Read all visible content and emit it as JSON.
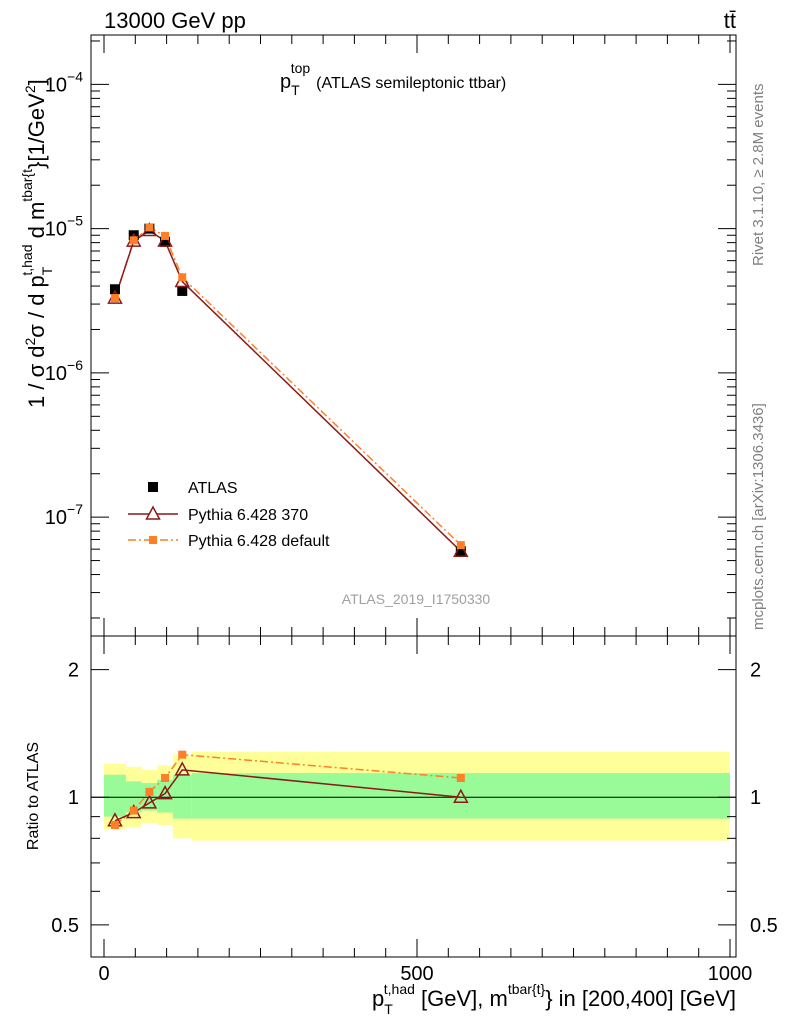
{
  "header": {
    "left_label": "13000 GeV pp",
    "right_label": "tt̄"
  },
  "side_labels": {
    "rivet": "Rivet 3.1.10, ≥ 2.8M events",
    "mcplots": "mcplots.cern.ch [arXiv:1306.3436]"
  },
  "colors": {
    "atlas": "#000000",
    "pythia370": "#8b1a1a",
    "pythia_default": "#ff7f27",
    "band_inner": "#98fb98",
    "band_outer": "#ffff99"
  },
  "chart_data": [
    {
      "type": "line",
      "panel": "main",
      "title_main": "p",
      "title_sub": "T",
      "title_sup": "top",
      "title_rest": "(ATLAS semileptonic ttbar)",
      "ylabel": "1 / σ d²σ / d p_T^{t,had} d m^{tbar{t}} [1/GeV²]",
      "yscale": "log",
      "ylim": [
        1.5e-08,
        0.00022
      ],
      "xlim": [
        -25,
        1010
      ],
      "y_ticklabels": [
        {
          "base": "10",
          "exp": "−7",
          "value": 1e-07
        },
        {
          "base": "10",
          "exp": "−6",
          "value": 1e-06
        },
        {
          "base": "10",
          "exp": "−5",
          "value": 1e-05
        },
        {
          "base": "10",
          "exp": "−4",
          "value": 0.0001
        }
      ],
      "watermark": "ATLAS_2019_I1750330",
      "legend_position": "bottom-left",
      "series": [
        {
          "name": "ATLAS",
          "style": "black squares",
          "x": [
            17.5,
            47.5,
            72.5,
            97.5,
            125,
            570
          ],
          "values": [
            3.8e-06,
            9e-06,
            1e-05,
            8.1e-06,
            3.7e-06,
            5.8e-08
          ]
        },
        {
          "name": "Pythia 6.428 370",
          "style": "solid line, open triangles",
          "x": [
            17.5,
            47.5,
            72.5,
            97.5,
            125,
            570
          ],
          "values": [
            3.3e-06,
            8.2e-06,
            9.7e-06,
            8.2e-06,
            4.3e-06,
            5.8e-08
          ]
        },
        {
          "name": "Pythia 6.428 default",
          "style": "dash-dot line, filled squares",
          "x": [
            17.5,
            47.5,
            72.5,
            97.5,
            125,
            570
          ],
          "values": [
            3.3e-06,
            8.3e-06,
            1.02e-05,
            8.9e-06,
            4.6e-06,
            6.4e-08
          ]
        }
      ]
    },
    {
      "type": "line",
      "panel": "ratio",
      "ylabel": "Ratio to ATLAS",
      "xlabel": "p_T^{t,had} [GeV], m^{tbar{t}} in [200,400] [GeV]",
      "xlabel_p": "p",
      "xlabel_sub": "T",
      "xlabel_sup1": "t,had",
      "xlabel_mid": " [GeV], m",
      "xlabel_sup2": "tbar{t}",
      "xlabel_rest": "} in [200,400] [GeV]",
      "yscale": "log",
      "ylim": [
        0.42,
        2.4
      ],
      "xlim": [
        -25,
        1010
      ],
      "y_ticklabels": [
        {
          "label": "0.5",
          "value": 0.5
        },
        {
          "label": "1",
          "value": 1
        },
        {
          "label": "2",
          "value": 2
        }
      ],
      "x_ticklabels": [
        {
          "label": "0",
          "value": 0
        },
        {
          "label": "500",
          "value": 500
        },
        {
          "label": "1000",
          "value": 1000
        }
      ],
      "bands": [
        {
          "x": [
            0,
            35
          ],
          "inner": [
            0.9,
            1.13
          ],
          "outer": [
            0.84,
            1.2
          ]
        },
        {
          "x": [
            35,
            60
          ],
          "inner": [
            0.92,
            1.09
          ],
          "outer": [
            0.85,
            1.18
          ]
        },
        {
          "x": [
            60,
            85
          ],
          "inner": [
            0.93,
            1.08
          ],
          "outer": [
            0.87,
            1.16
          ]
        },
        {
          "x": [
            85,
            110
          ],
          "inner": [
            0.92,
            1.1
          ],
          "outer": [
            0.86,
            1.19
          ]
        },
        {
          "x": [
            110,
            140
          ],
          "inner": [
            0.89,
            1.13
          ],
          "outer": [
            0.8,
            1.26
          ]
        },
        {
          "x": [
            140,
            1000
          ],
          "inner": [
            0.89,
            1.14
          ],
          "outer": [
            0.79,
            1.28
          ]
        }
      ],
      "series": [
        {
          "name": "Pythia 6.428 370",
          "x": [
            17.5,
            47.5,
            72.5,
            97.5,
            125,
            570
          ],
          "values": [
            0.88,
            0.92,
            0.97,
            1.02,
            1.16,
            1.0
          ]
        },
        {
          "name": "Pythia 6.428 default",
          "x": [
            17.5,
            47.5,
            72.5,
            97.5,
            125,
            570
          ],
          "values": [
            0.86,
            0.93,
            1.03,
            1.11,
            1.26,
            1.11
          ]
        }
      ]
    }
  ]
}
